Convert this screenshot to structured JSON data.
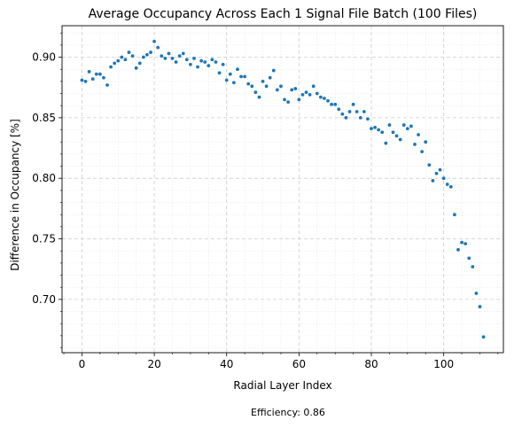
{
  "chart_data": {
    "type": "scatter",
    "title": "Average Occupancy Across Each 1 Signal File Batch (100 Files)",
    "xlabel": "Radial Layer Index",
    "ylabel": "Difference in Occupancy [%]",
    "footnote": "Efficiency: 0.86",
    "xlim": [
      -5.5,
      116.5
    ],
    "ylim": [
      0.656,
      0.926
    ],
    "xticks": [
      0,
      20,
      40,
      60,
      80,
      100
    ],
    "xtick_labels": [
      "0",
      "20",
      "40",
      "60",
      "80",
      "100"
    ],
    "yticks": [
      0.7,
      0.75,
      0.8,
      0.85,
      0.9
    ],
    "ytick_labels": [
      "0.70",
      "0.75",
      "0.80",
      "0.85",
      "0.90"
    ],
    "grid": true,
    "minor_grid": true,
    "marker_color": "#1f77b4",
    "x": [
      0,
      1,
      2,
      3,
      4,
      5,
      6,
      7,
      8,
      9,
      10,
      11,
      12,
      13,
      14,
      15,
      16,
      17,
      18,
      19,
      20,
      21,
      22,
      23,
      24,
      25,
      26,
      27,
      28,
      29,
      30,
      31,
      32,
      33,
      34,
      35,
      36,
      37,
      38,
      39,
      40,
      41,
      42,
      43,
      44,
      45,
      46,
      47,
      48,
      49,
      50,
      51,
      52,
      53,
      54,
      55,
      56,
      57,
      58,
      59,
      60,
      61,
      62,
      63,
      64,
      65,
      66,
      67,
      68,
      69,
      70,
      71,
      72,
      73,
      74,
      75,
      76,
      77,
      78,
      79,
      80,
      81,
      82,
      83,
      84,
      85,
      86,
      87,
      88,
      89,
      90,
      91,
      92,
      93,
      94,
      95,
      96,
      97,
      98,
      99,
      100,
      101,
      102,
      103,
      104,
      105,
      106,
      107,
      108,
      109,
      110,
      111
    ],
    "y": [
      0.881,
      0.88,
      0.888,
      0.882,
      0.886,
      0.886,
      0.883,
      0.877,
      0.892,
      0.895,
      0.897,
      0.9,
      0.898,
      0.904,
      0.901,
      0.891,
      0.895,
      0.9,
      0.902,
      0.904,
      0.913,
      0.908,
      0.901,
      0.899,
      0.903,
      0.899,
      0.896,
      0.901,
      0.903,
      0.898,
      0.894,
      0.899,
      0.892,
      0.897,
      0.896,
      0.893,
      0.898,
      0.896,
      0.887,
      0.894,
      0.881,
      0.886,
      0.879,
      0.89,
      0.884,
      0.884,
      0.878,
      0.876,
      0.871,
      0.867,
      0.88,
      0.876,
      0.883,
      0.889,
      0.873,
      0.876,
      0.865,
      0.863,
      0.873,
      0.874,
      0.865,
      0.869,
      0.871,
      0.869,
      0.876,
      0.87,
      0.867,
      0.866,
      0.864,
      0.861,
      0.861,
      0.857,
      0.853,
      0.85,
      0.855,
      0.861,
      0.855,
      0.85,
      0.855,
      0.849,
      0.841,
      0.842,
      0.84,
      0.838,
      0.829,
      0.844,
      0.838,
      0.835,
      0.832,
      0.844,
      0.841,
      0.843,
      0.828,
      0.836,
      0.822,
      0.83,
      0.811,
      0.798,
      0.804,
      0.807,
      0.8,
      0.795,
      0.793,
      0.77,
      0.741,
      0.747,
      0.746,
      0.734,
      0.727,
      0.705,
      0.694,
      0.669
    ]
  }
}
